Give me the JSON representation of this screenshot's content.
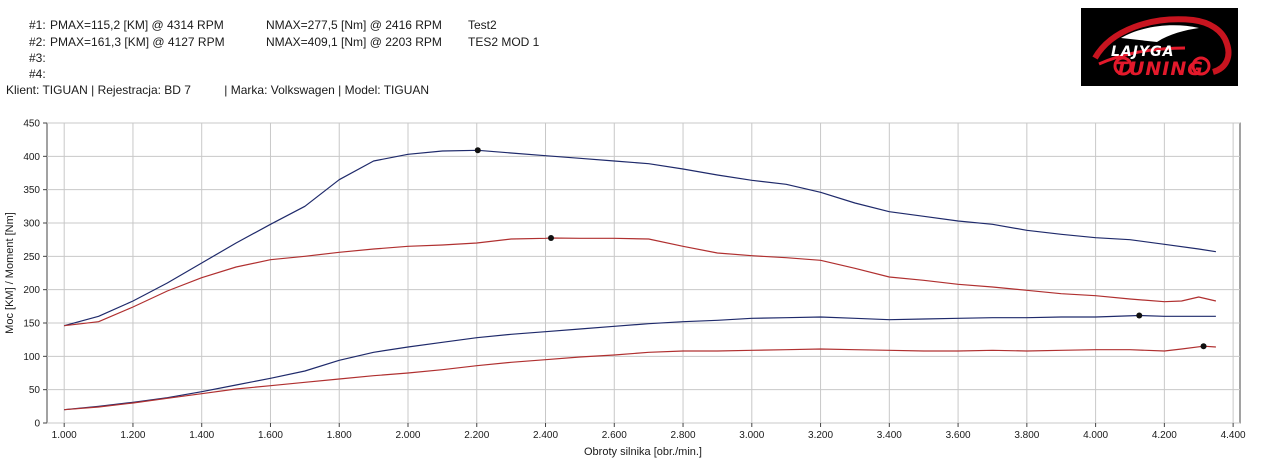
{
  "runs": [
    {
      "label": "#1:",
      "pmax": "PMAX=115,2 [KM] @ 4314 RPM",
      "nmax": "NMAX=277,5 [Nm] @ 2416 RPM",
      "name": "Test2"
    },
    {
      "label": "#2:",
      "pmax": "PMAX=161,3 [KM] @ 4127 RPM",
      "nmax": "NMAX=409,1 [Nm] @ 2203 RPM",
      "name": "TES2 MOD 1"
    },
    {
      "label": "#3:",
      "pmax": "",
      "nmax": "",
      "name": ""
    },
    {
      "label": "#4:",
      "pmax": "",
      "nmax": "",
      "name": ""
    }
  ],
  "client_line": "Klient: TIGUAN | Rejestracja: BD 7          | Marka: Volkswagen | Model: TIGUAN",
  "logo": {
    "line1": "LAJYGA",
    "line2": "TUNING"
  },
  "chart_data": {
    "type": "line",
    "xlabel": "Obroty silnika [obr./min.]",
    "ylabel": "Moc [KM] / Moment [Nm]",
    "xlim": [
      950,
      4420
    ],
    "ylim": [
      0,
      450
    ],
    "xticks": [
      1000,
      1200,
      1400,
      1600,
      1800,
      2000,
      2200,
      2400,
      2600,
      2800,
      3000,
      3200,
      3400,
      3600,
      3800,
      4000,
      4200,
      4400
    ],
    "xtick_labels": [
      "1.000",
      "1.200",
      "1.400",
      "1.600",
      "1.800",
      "2.000",
      "2.200",
      "2.400",
      "2.600",
      "2.800",
      "3.000",
      "3.200",
      "3.400",
      "3.600",
      "3.800",
      "4.000",
      "4.200",
      "4.400"
    ],
    "yticks": [
      0,
      50,
      100,
      150,
      200,
      250,
      300,
      350,
      400,
      450
    ],
    "grid": true,
    "series": [
      {
        "color": "#1f2a6b",
        "points": [
          [
            1000,
            146
          ],
          [
            1100,
            160
          ],
          [
            1200,
            183
          ],
          [
            1300,
            210
          ],
          [
            1400,
            240
          ],
          [
            1500,
            270
          ],
          [
            1600,
            298
          ],
          [
            1700,
            325
          ],
          [
            1800,
            365
          ],
          [
            1900,
            393
          ],
          [
            2000,
            403
          ],
          [
            2100,
            408
          ],
          [
            2203,
            409
          ],
          [
            2300,
            405
          ],
          [
            2400,
            401
          ],
          [
            2500,
            397
          ],
          [
            2600,
            393
          ],
          [
            2700,
            389
          ],
          [
            2800,
            381
          ],
          [
            2900,
            372
          ],
          [
            3000,
            364
          ],
          [
            3100,
            358
          ],
          [
            3200,
            346
          ],
          [
            3300,
            330
          ],
          [
            3400,
            317
          ],
          [
            3500,
            310
          ],
          [
            3600,
            303
          ],
          [
            3700,
            298
          ],
          [
            3800,
            289
          ],
          [
            3900,
            283
          ],
          [
            4000,
            278
          ],
          [
            4100,
            275
          ],
          [
            4200,
            268
          ],
          [
            4300,
            261
          ],
          [
            4350,
            257
          ]
        ]
      },
      {
        "color": "#b03030",
        "points": [
          [
            1000,
            146
          ],
          [
            1100,
            152
          ],
          [
            1200,
            174
          ],
          [
            1300,
            198
          ],
          [
            1400,
            218
          ],
          [
            1500,
            234
          ],
          [
            1600,
            245
          ],
          [
            1700,
            250
          ],
          [
            1800,
            256
          ],
          [
            1900,
            261
          ],
          [
            2000,
            265
          ],
          [
            2100,
            267
          ],
          [
            2200,
            270
          ],
          [
            2300,
            276
          ],
          [
            2400,
            277
          ],
          [
            2416,
            277.5
          ],
          [
            2500,
            277
          ],
          [
            2600,
            277
          ],
          [
            2700,
            276
          ],
          [
            2800,
            265
          ],
          [
            2900,
            255
          ],
          [
            3000,
            251
          ],
          [
            3100,
            248
          ],
          [
            3200,
            244
          ],
          [
            3300,
            232
          ],
          [
            3400,
            219
          ],
          [
            3500,
            214
          ],
          [
            3600,
            208
          ],
          [
            3700,
            204
          ],
          [
            3800,
            199
          ],
          [
            3900,
            194
          ],
          [
            4000,
            191
          ],
          [
            4100,
            186
          ],
          [
            4200,
            182
          ],
          [
            4250,
            183
          ],
          [
            4300,
            189
          ],
          [
            4350,
            183
          ]
        ]
      },
      {
        "color": "#1f2a6b",
        "points": [
          [
            1000,
            20
          ],
          [
            1100,
            25
          ],
          [
            1200,
            31
          ],
          [
            1300,
            38
          ],
          [
            1400,
            47
          ],
          [
            1500,
            57
          ],
          [
            1600,
            67
          ],
          [
            1700,
            78
          ],
          [
            1800,
            94
          ],
          [
            1900,
            106
          ],
          [
            2000,
            114
          ],
          [
            2100,
            121
          ],
          [
            2200,
            128
          ],
          [
            2300,
            133
          ],
          [
            2400,
            137
          ],
          [
            2500,
            141
          ],
          [
            2600,
            145
          ],
          [
            2700,
            149
          ],
          [
            2800,
            152
          ],
          [
            2900,
            154
          ],
          [
            3000,
            157
          ],
          [
            3100,
            158
          ],
          [
            3200,
            159
          ],
          [
            3300,
            157
          ],
          [
            3400,
            155
          ],
          [
            3500,
            156
          ],
          [
            3600,
            157
          ],
          [
            3700,
            158
          ],
          [
            3800,
            158
          ],
          [
            3900,
            159
          ],
          [
            4000,
            159
          ],
          [
            4127,
            161.3
          ],
          [
            4200,
            160
          ],
          [
            4350,
            160
          ]
        ]
      },
      {
        "color": "#b03030",
        "points": [
          [
            1000,
            20
          ],
          [
            1100,
            24
          ],
          [
            1200,
            30
          ],
          [
            1300,
            37
          ],
          [
            1400,
            44
          ],
          [
            1500,
            51
          ],
          [
            1600,
            56
          ],
          [
            1700,
            61
          ],
          [
            1800,
            66
          ],
          [
            1900,
            71
          ],
          [
            2000,
            75
          ],
          [
            2100,
            80
          ],
          [
            2200,
            86
          ],
          [
            2300,
            91
          ],
          [
            2400,
            95
          ],
          [
            2500,
            99
          ],
          [
            2600,
            102
          ],
          [
            2700,
            106
          ],
          [
            2800,
            108
          ],
          [
            2900,
            108
          ],
          [
            3000,
            109
          ],
          [
            3100,
            110
          ],
          [
            3200,
            111
          ],
          [
            3300,
            110
          ],
          [
            3400,
            109
          ],
          [
            3500,
            108
          ],
          [
            3600,
            108
          ],
          [
            3700,
            109
          ],
          [
            3800,
            108
          ],
          [
            3900,
            109
          ],
          [
            4000,
            110
          ],
          [
            4100,
            110
          ],
          [
            4200,
            108
          ],
          [
            4250,
            111
          ],
          [
            4314,
            115.2
          ],
          [
            4350,
            114
          ]
        ]
      }
    ],
    "markers": [
      {
        "x": 2203,
        "y": 409.1
      },
      {
        "x": 2416,
        "y": 277.5
      },
      {
        "x": 4127,
        "y": 161.3
      },
      {
        "x": 4314,
        "y": 115.2
      }
    ]
  }
}
